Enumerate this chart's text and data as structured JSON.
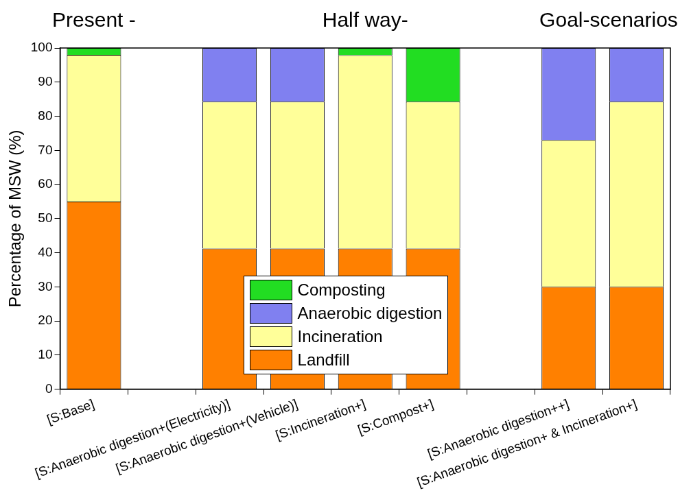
{
  "chart_data": {
    "type": "bar",
    "stacked": true,
    "ylabel": "Percentage of MSW (%)",
    "annotations": [
      "Present -",
      "Half way-",
      "Goal-scenarios"
    ],
    "categories": [
      "[S:Base]",
      null,
      "[S:Anaerobic digestion+(Electricity)]",
      "[S:Anaerobic digestion+(Vehicle)]",
      "[S:Incineration+]",
      "[S:Compost+]",
      null,
      "[S:Anaerobic digestion++]",
      "[S:Anaerobic digestion+ & Incineration+]"
    ],
    "series": [
      {
        "name": "Landfill",
        "color": "#ff8000",
        "values": [
          55,
          null,
          41.2,
          41.2,
          41.2,
          41.2,
          null,
          30,
          30
        ]
      },
      {
        "name": "Incineration",
        "color": "#ffff99",
        "values": [
          43,
          null,
          43.1,
          43.1,
          56.7,
          43.1,
          null,
          43,
          54.3
        ]
      },
      {
        "name": "Anaerobic digestion",
        "color": "#8080f0",
        "values": [
          0,
          null,
          15.7,
          15.7,
          0,
          0,
          null,
          27,
          15.7
        ]
      },
      {
        "name": "Composting",
        "color": "#22dd22",
        "values": [
          2,
          null,
          0,
          0,
          2.1,
          15.7,
          null,
          0,
          0
        ]
      }
    ],
    "ylim": [
      0,
      100
    ],
    "yticks": [
      0,
      10,
      20,
      30,
      40,
      50,
      60,
      70,
      80,
      90,
      100
    ],
    "grid": false,
    "legend": "bottom"
  }
}
